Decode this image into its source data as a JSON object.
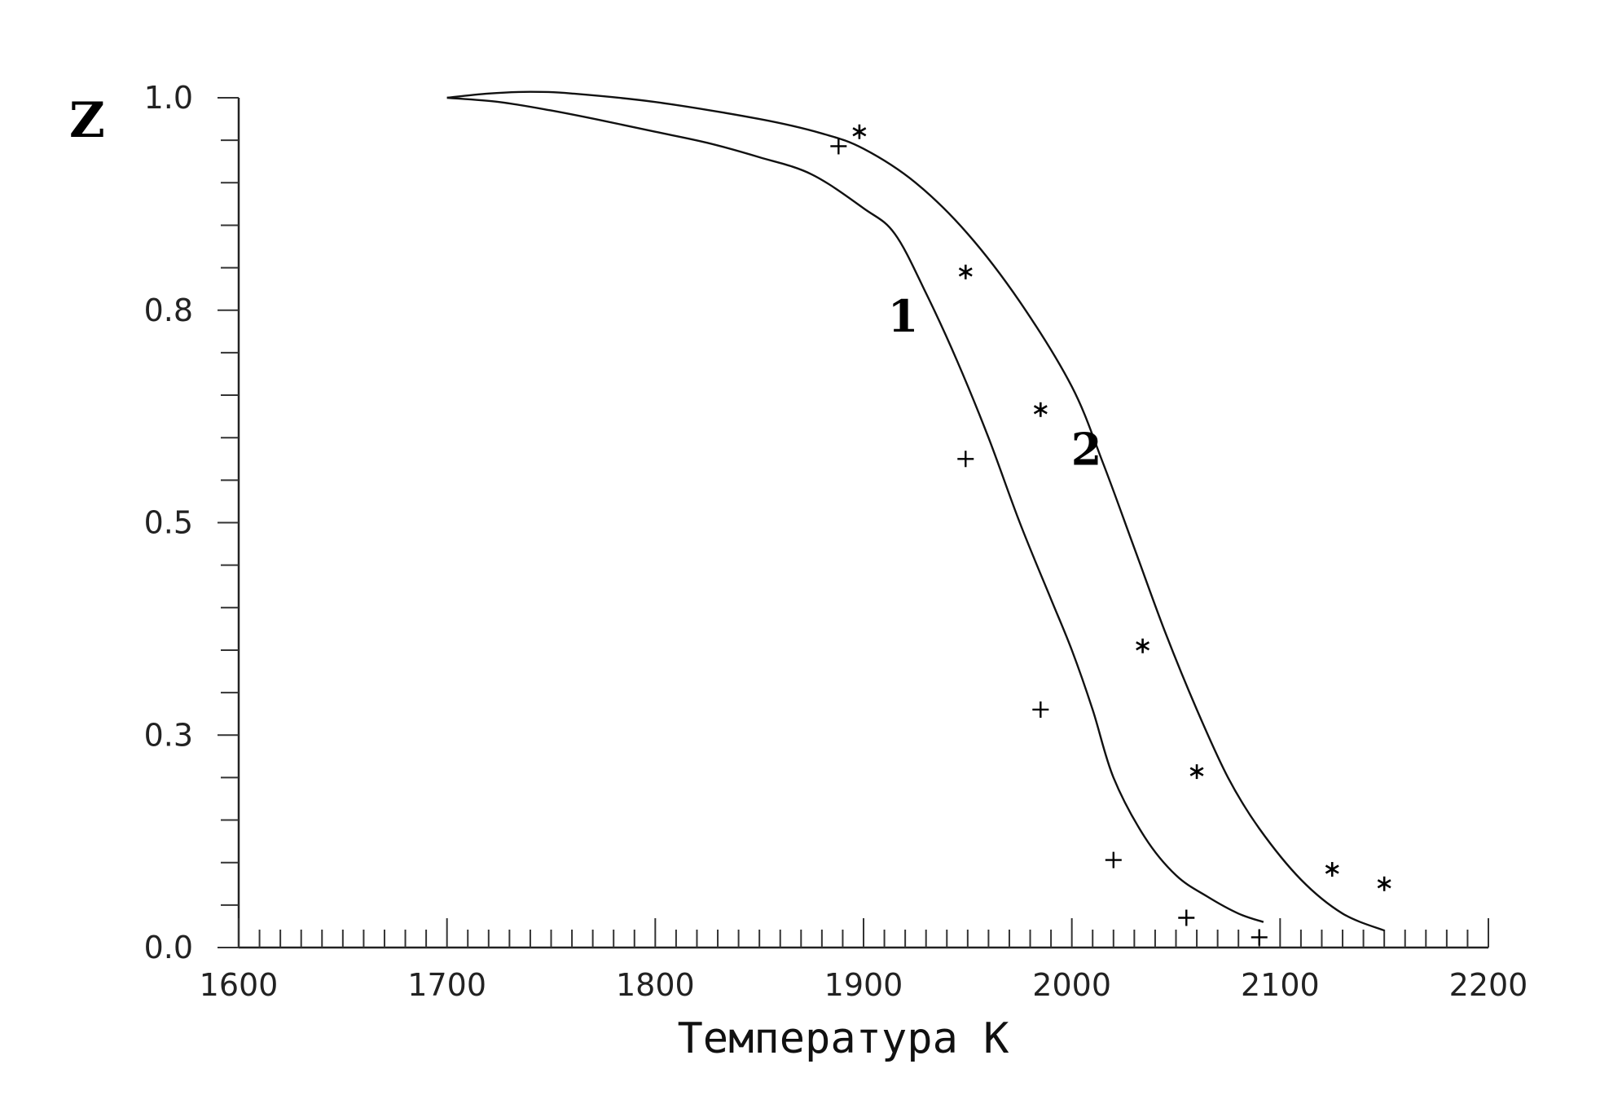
{
  "chart_data": {
    "type": "line",
    "title": "",
    "xlabel": "Температура К",
    "ylabel": "Z",
    "xlim": [
      1600,
      2200
    ],
    "ylim": [
      0.0,
      1.0
    ],
    "x_ticks": [
      1600,
      1700,
      1800,
      1900,
      2000,
      2100,
      2200
    ],
    "x_tick_labels": [
      "1600",
      "1700",
      "1800",
      "1900",
      "2000",
      "2100",
      "2200"
    ],
    "y_ticks": [
      0.0,
      0.25,
      0.5,
      0.75,
      1.0
    ],
    "y_tick_labels": [
      "0.0",
      "0.3",
      "0.5",
      "0.8",
      "1.0"
    ],
    "grid": false,
    "series": [
      {
        "name": "1",
        "style": "line",
        "x": [
          1700,
          1725,
          1750,
          1775,
          1800,
          1825,
          1850,
          1875,
          1900,
          1915,
          1930,
          1945,
          1960,
          1975,
          1990,
          2000,
          2010,
          2020,
          2035,
          2050,
          2065,
          2080,
          2092
        ],
        "y": [
          1.0,
          0.995,
          0.985,
          0.973,
          0.96,
          0.947,
          0.93,
          0.91,
          0.87,
          0.84,
          0.77,
          0.69,
          0.6,
          0.5,
          0.41,
          0.35,
          0.28,
          0.2,
          0.13,
          0.085,
          0.06,
          0.04,
          0.03
        ]
      },
      {
        "name": "2",
        "style": "line",
        "x": [
          1700,
          1720,
          1740,
          1760,
          1800,
          1850,
          1880,
          1900,
          1925,
          1950,
          1975,
          2000,
          2015,
          2030,
          2045,
          2060,
          2075,
          2090,
          2110,
          2130,
          2150
        ],
        "y": [
          1.0,
          1.005,
          1.007,
          1.005,
          0.995,
          0.975,
          0.958,
          0.94,
          0.9,
          0.84,
          0.76,
          0.66,
          0.57,
          0.47,
          0.37,
          0.28,
          0.2,
          0.14,
          0.08,
          0.04,
          0.02
        ]
      },
      {
        "name": "+",
        "style": "marker",
        "marker": "+",
        "x": [
          1888,
          1949,
          1985,
          2020,
          2055,
          2090
        ],
        "y": [
          0.943,
          0.575,
          0.28,
          0.103,
          0.035,
          0.012
        ]
      },
      {
        "name": "*",
        "style": "marker",
        "marker": "*",
        "x": [
          1898,
          1949,
          1985,
          2034,
          2060,
          2125,
          2150
        ],
        "y": [
          0.96,
          0.795,
          0.633,
          0.355,
          0.207,
          0.092,
          0.075
        ]
      }
    ],
    "annotations": [
      {
        "text": "1",
        "x": 1919,
        "y": 0.725
      },
      {
        "text": "2",
        "x": 2007,
        "y": 0.568
      }
    ]
  }
}
